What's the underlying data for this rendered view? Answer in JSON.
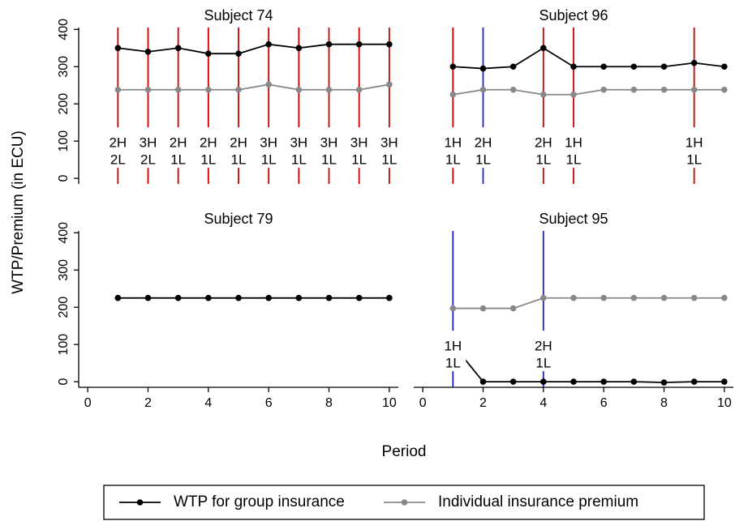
{
  "chart_data": {
    "type": "line",
    "shared": {
      "ylabel": "WTP/Premium (in ECU)",
      "xlabel": "Period",
      "xlim": [
        -0.3,
        10.3
      ],
      "ylim": [
        -15,
        405
      ],
      "xticks": [
        0,
        2,
        4,
        6,
        8,
        10
      ],
      "yticks": [
        0,
        100,
        200,
        300,
        400
      ],
      "grid": false,
      "legend_position": "bottom",
      "legend": [
        {
          "label": "WTP for group insurance",
          "color": "#000000"
        },
        {
          "label": "Individual insurance premium",
          "color": "#888888"
        }
      ],
      "colors": {
        "wtp": "#000000",
        "premium": "#888888",
        "red_line": "#cc0000",
        "blue_line": "#1f1fd6"
      }
    },
    "panels": [
      {
        "title": "Subject 74",
        "x": [
          1,
          2,
          3,
          4,
          5,
          6,
          7,
          8,
          9,
          10
        ],
        "wtp": [
          350,
          340,
          350,
          335,
          335,
          360,
          350,
          360,
          360,
          360
        ],
        "premium": [
          238,
          238,
          238,
          238,
          238,
          252,
          238,
          238,
          238,
          252
        ],
        "events": [
          {
            "x": 1,
            "color": "red",
            "top": "2H",
            "bottom": "2L"
          },
          {
            "x": 2,
            "color": "red",
            "top": "3H",
            "bottom": "2L"
          },
          {
            "x": 3,
            "color": "red",
            "top": "2H",
            "bottom": "1L"
          },
          {
            "x": 4,
            "color": "red",
            "top": "2H",
            "bottom": "1L"
          },
          {
            "x": 5,
            "color": "red",
            "top": "2H",
            "bottom": "1L"
          },
          {
            "x": 6,
            "color": "red",
            "top": "3H",
            "bottom": "1L"
          },
          {
            "x": 7,
            "color": "red",
            "top": "3H",
            "bottom": "1L"
          },
          {
            "x": 8,
            "color": "red",
            "top": "3H",
            "bottom": "1L"
          },
          {
            "x": 9,
            "color": "red",
            "top": "3H",
            "bottom": "1L"
          },
          {
            "x": 10,
            "color": "red",
            "top": "3H",
            "bottom": "1L"
          }
        ]
      },
      {
        "title": "Subject 96",
        "x": [
          1,
          2,
          3,
          4,
          5,
          6,
          7,
          8,
          9,
          10
        ],
        "wtp": [
          300,
          295,
          300,
          350,
          300,
          300,
          300,
          300,
          310,
          300
        ],
        "premium": [
          225,
          238,
          238,
          225,
          225,
          238,
          238,
          238,
          238,
          238
        ],
        "events": [
          {
            "x": 1,
            "color": "red",
            "top": "1H",
            "bottom": "1L"
          },
          {
            "x": 2,
            "color": "blue",
            "top": "2H",
            "bottom": "1L"
          },
          {
            "x": 4,
            "color": "red",
            "top": "2H",
            "bottom": "1L"
          },
          {
            "x": 5,
            "color": "red",
            "top": "1H",
            "bottom": "1L"
          },
          {
            "x": 9,
            "color": "red",
            "top": "1H",
            "bottom": "1L"
          }
        ]
      },
      {
        "title": "Subject 79",
        "x": [
          1,
          2,
          3,
          4,
          5,
          6,
          7,
          8,
          9,
          10
        ],
        "wtp": [
          225,
          225,
          225,
          225,
          225,
          225,
          225,
          225,
          225,
          225
        ],
        "premium": [
          225,
          225,
          225,
          225,
          225,
          225,
          225,
          225,
          225,
          225
        ],
        "events": []
      },
      {
        "title": "Subject 95",
        "x": [
          1,
          2,
          3,
          4,
          5,
          6,
          7,
          8,
          9,
          10
        ],
        "wtp": [
          100,
          0,
          0,
          0,
          0,
          0,
          0,
          -2,
          0,
          0
        ],
        "premium": [
          197,
          197,
          197,
          225,
          225,
          225,
          225,
          225,
          225,
          225
        ],
        "events": [
          {
            "x": 1,
            "color": "blue",
            "top": "1H",
            "bottom": "1L"
          },
          {
            "x": 4,
            "color": "blue",
            "top": "2H",
            "bottom": "1L"
          }
        ]
      }
    ]
  }
}
